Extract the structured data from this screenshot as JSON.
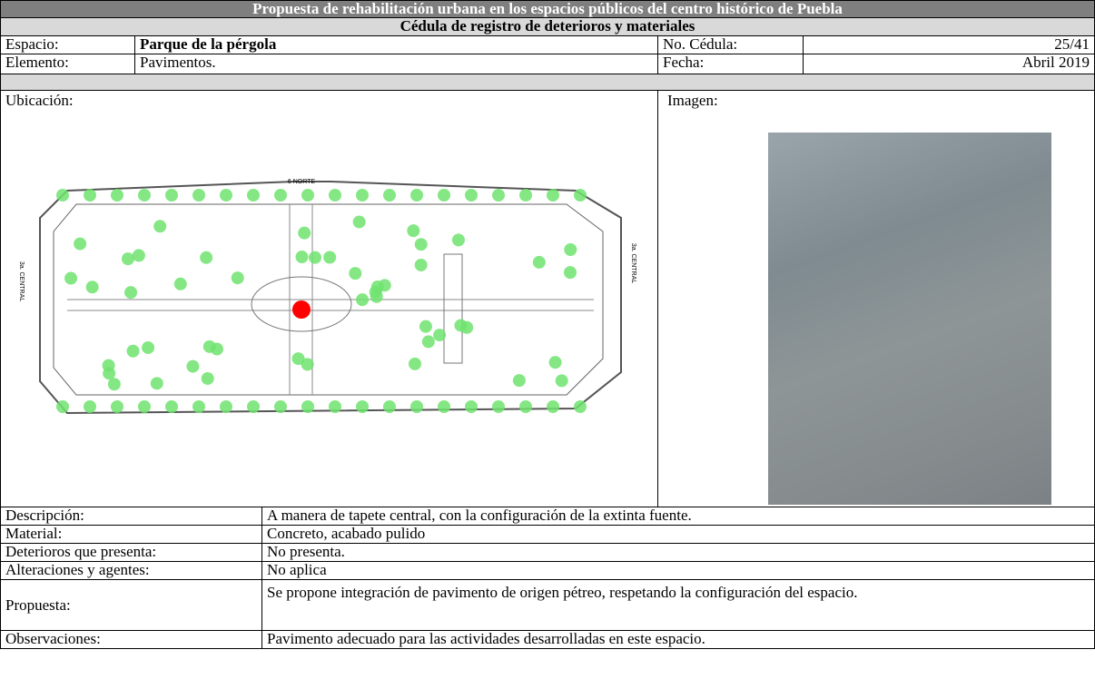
{
  "header": {
    "title": "Propuesta de rehabilitación urbana en los espacios públicos del centro histórico de Puebla",
    "subtitle": "Cédula de registro de deterioros y materiales"
  },
  "fields": {
    "espacio": {
      "label": "Espacio:",
      "value": "Parque de la pérgola"
    },
    "cedula": {
      "label": "No. Cédula:",
      "value": "25/41"
    },
    "elemento": {
      "label": "Elemento:",
      "value": "Pavimentos."
    },
    "fecha": {
      "label": "Fecha:",
      "value": "Abril 2019"
    }
  },
  "ubicacion": {
    "label": "Ubicación:",
    "map_labels": [
      "6 NORTE",
      "3a. CENTRAL",
      "3a. CENTRAL"
    ]
  },
  "imagen": {
    "label": "Imagen:"
  },
  "details": {
    "rows": [
      [
        "Descripción:",
        "A manera de tapete central, con la configuración de la extinta fuente."
      ],
      [
        "Material:",
        "Concreto, acabado pulido"
      ],
      [
        "Deterioros que presenta:",
        "No presenta."
      ],
      [
        "Alteraciones y agentes:",
        "No aplica"
      ],
      [
        "Propuesta:",
        "Se propone integración de pavimento de origen pétreo, respetando la configuración del espacio."
      ],
      [
        "Observaciones:",
        "Pavimento adecuado para las actividades desarrolladas en este espacio."
      ]
    ]
  }
}
